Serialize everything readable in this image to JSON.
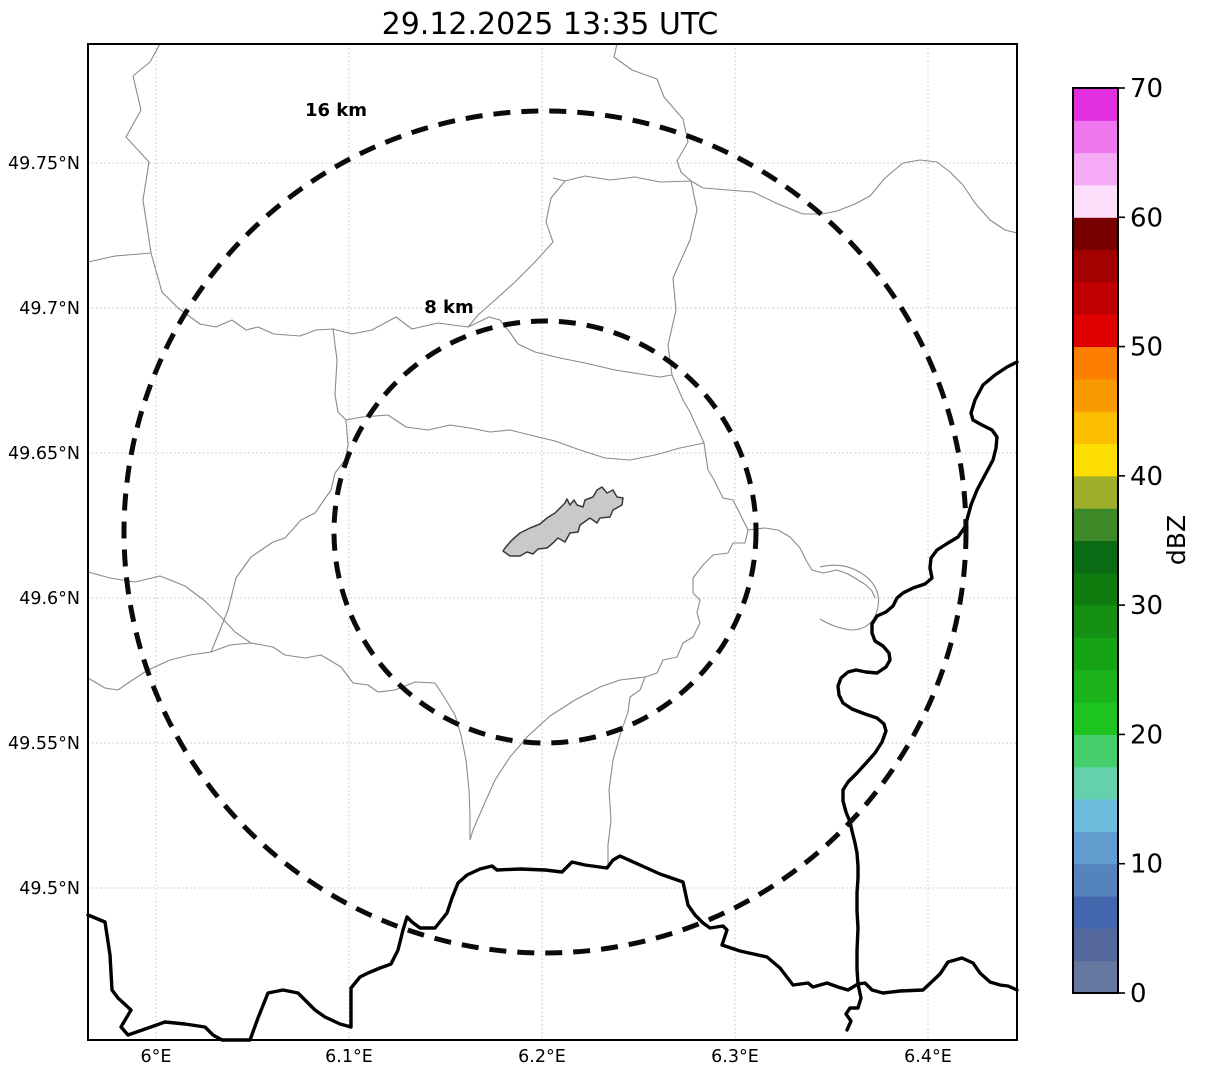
{
  "chart_data": {
    "type": "heatmap",
    "subtype": "weather-radar-ppi-map",
    "title": "29.12.2025 13:35 UTC",
    "x_axis": {
      "tick_labels": [
        "6°E",
        "6.1°E",
        "6.2°E",
        "6.3°E",
        "6.4°E"
      ]
    },
    "y_axis": {
      "tick_labels": [
        "49.75°N",
        "49.7°N",
        "49.65°N",
        "49.6°N",
        "49.55°N",
        "49.5°N"
      ]
    },
    "grid": true,
    "range_rings": [
      {
        "label": "16 km",
        "radius_km": 16
      },
      {
        "label": "8 km",
        "radius_km": 8
      }
    ],
    "echoes": [],
    "colorbar": {
      "label": "dBZ",
      "min": 0,
      "max": 70,
      "step_dbz": 2.5,
      "ticks": [
        0,
        10,
        20,
        30,
        40,
        50,
        60,
        70
      ],
      "tick_labels": [
        "0",
        "10",
        "20",
        "30",
        "40",
        "50",
        "60",
        "70"
      ],
      "colors": [
        "#6677a0",
        "#55689e",
        "#4366ac",
        "#5584bc",
        "#609dce",
        "#6cbcdc",
        "#63d1ac",
        "#44ce6c",
        "#1dc41d",
        "#1ab31a",
        "#16a316",
        "#149114",
        "#107c10",
        "#0b6b14",
        "#3e8928",
        "#9fae2b",
        "#fedd00",
        "#fbbf00",
        "#fa9800",
        "#fc7f00",
        "#e00000",
        "#c00000",
        "#a40000",
        "#780000",
        "#fbdffb",
        "#f5aaf5",
        "#ee77ee",
        "#e030e0"
      ]
    }
  }
}
